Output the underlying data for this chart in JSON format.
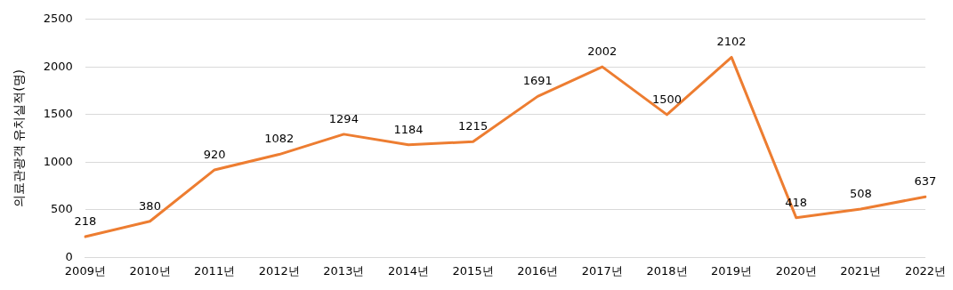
{
  "chart_data": {
    "type": "line",
    "ylabel": "의료관광객 유치실적(명)",
    "categories": [
      "2009년",
      "2010년",
      "2011년",
      "2012년",
      "2013년",
      "2014년",
      "2015년",
      "2016년",
      "2017년",
      "2018년",
      "2019년",
      "2020년",
      "2021년",
      "2022년"
    ],
    "series": [
      {
        "color": "#ed7d31",
        "values": [
          218,
          380,
          920,
          1082,
          1294,
          1184,
          1215,
          1691,
          2002,
          1500,
          2102,
          418,
          508,
          637
        ]
      }
    ],
    "ylim": [
      0,
      2500
    ],
    "yticks": [
      0,
      500,
      1000,
      1500,
      2000,
      2500
    ],
    "grid": "y",
    "data_labels": true,
    "marker": "none",
    "line_style": "solid"
  }
}
